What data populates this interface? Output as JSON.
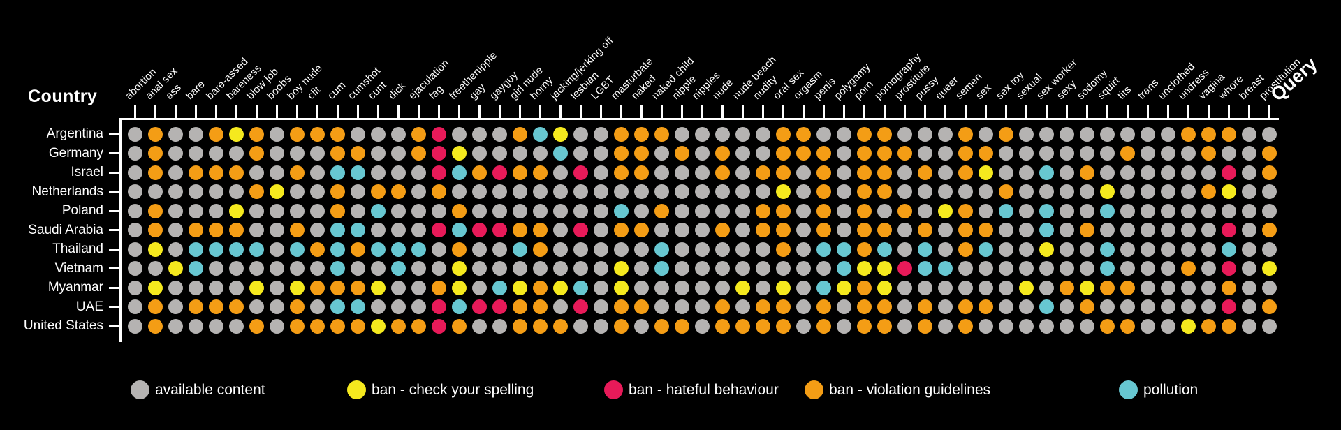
{
  "chart_data": {
    "type": "heatmap",
    "country_axis_label": "Country",
    "query_axis_label": "Query",
    "queries": [
      "abortion",
      "anal sex",
      "ass",
      "bare",
      "bare-assed",
      "bareness",
      "blow job",
      "boobs",
      "boy nude",
      "clit",
      "cum",
      "cumshot",
      "cunt",
      "dick",
      "ejaculation",
      "fag",
      "freethenipple",
      "gay",
      "gayguy",
      "girl nude",
      "horny",
      "jacking/jerking off",
      "lesbian",
      "LGBT",
      "masturbate",
      "naked",
      "naked child",
      "nipple",
      "nipples",
      "nude",
      "nude beach",
      "nudity",
      "oral sex",
      "orgasm",
      "penis",
      "polygamy",
      "porn",
      "pornography",
      "prostitute",
      "pussy",
      "queer",
      "semen",
      "sex",
      "sex toy",
      "sexual",
      "sex worker",
      "sexy",
      "sodomy",
      "squirt",
      "tits",
      "trans",
      "unclothed",
      "undress",
      "vagina",
      "whore",
      "breast",
      "prostitution"
    ],
    "countries": [
      "Argentina",
      "Germany",
      "Israel",
      "Netherlands",
      "Poland",
      "Saudi Arabia",
      "Thailand",
      "Vietnam",
      "Myanmar",
      "UAE",
      "United States"
    ],
    "legend": [
      {
        "key": "g",
        "label": "available content"
      },
      {
        "key": "y",
        "label": "ban - check your spelling"
      },
      {
        "key": "r",
        "label": "ban - hateful behaviour"
      },
      {
        "key": "o",
        "label": "ban - violation guidelines"
      },
      {
        "key": "c",
        "label": "pollution"
      }
    ],
    "colors": {
      "g": "#b5b3b2",
      "y": "#f5e91e",
      "r": "#e81a59",
      "o": "#f49d15",
      "c": "#67c7d1"
    },
    "matrix": [
      "goggoyogooogggorgggocyggooogggggooggoogggogoggggggggooogg",
      "goggggogggooggoryggggcggoogogoggooogoooggooggggggogggoggo",
      "gogoooggogccgggrcoroogrgoogggogoogogoogogoyggcgoggggggrgo",
      "ggggggoyggogoogoggggggggggggggggygogoogggggoggggyggggoygg",
      "gogggyggggogcgggogggggggcgoggggoogogogogyogcgcggcgggggggg",
      "gogoooggogccgggrcrroogrgoogggogoogogoogogooggcgoggggggrgo",
      "gygccccgcococccgoggcogggggcgggggogccocgcgocggyggcgggggcgg",
      "ggycggggggcggcggygggggggygcggggggggcyyrccgggggggcgggogrgy",
      "gyggggygyoooyggoygcyoycgygggggygygcyoyggggggygoyooggggogg",
      "gogoooggogccgggrcrroogrgoogggogoogogoogogooggcgoggggggrgo",
      "goggggogooooyooroggoooggogoogoooogogoogogoggggggooggyoogg"
    ]
  }
}
